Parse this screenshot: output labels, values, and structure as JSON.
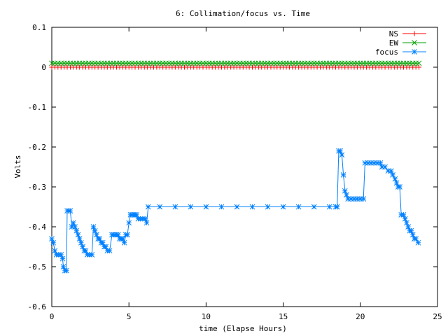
{
  "chart_data": {
    "type": "line",
    "title": "6: Collimation/focus vs. Time",
    "xlabel": "time (Elapse Hours)",
    "ylabel": "Volts",
    "xlim": [
      0,
      25
    ],
    "ylim": [
      -0.6,
      0.1
    ],
    "xticks": [
      0,
      5,
      10,
      15,
      20,
      25
    ],
    "yticks": [
      -0.6,
      -0.5,
      -0.4,
      -0.3,
      -0.2,
      -0.1,
      0,
      0.1
    ],
    "xtick_labels": [
      "0",
      "5",
      "10",
      "15",
      "20",
      "25"
    ],
    "ytick_labels": [
      "-0.6",
      "-0.5",
      "-0.4",
      "-0.3",
      "-0.2",
      "-0.1",
      "0",
      "0.1"
    ],
    "grid": false,
    "legend_position": "top-right",
    "series": [
      {
        "name": "NS",
        "color": "#ff0000",
        "marker": "plus",
        "x_start": 0.0,
        "x_end": 23.9,
        "x_step": 0.2,
        "constant_y": 0.0
      },
      {
        "name": "EW",
        "color": "#00a000",
        "marker": "cross",
        "x_start": 0.0,
        "x_end": 23.9,
        "x_step": 0.2,
        "constant_y": 0.01
      },
      {
        "name": "focus",
        "color": "#0080ff",
        "marker": "star",
        "points": [
          [
            0.0,
            -0.43
          ],
          [
            0.1,
            -0.44
          ],
          [
            0.2,
            -0.46
          ],
          [
            0.3,
            -0.47
          ],
          [
            0.45,
            -0.47
          ],
          [
            0.6,
            -0.47
          ],
          [
            0.7,
            -0.48
          ],
          [
            0.75,
            -0.5
          ],
          [
            0.85,
            -0.51
          ],
          [
            0.95,
            -0.51
          ],
          [
            1.0,
            -0.36
          ],
          [
            1.1,
            -0.36
          ],
          [
            1.2,
            -0.36
          ],
          [
            1.3,
            -0.4
          ],
          [
            1.4,
            -0.39
          ],
          [
            1.5,
            -0.4
          ],
          [
            1.6,
            -0.41
          ],
          [
            1.7,
            -0.42
          ],
          [
            1.8,
            -0.43
          ],
          [
            1.9,
            -0.44
          ],
          [
            2.0,
            -0.45
          ],
          [
            2.1,
            -0.46
          ],
          [
            2.2,
            -0.46
          ],
          [
            2.3,
            -0.47
          ],
          [
            2.45,
            -0.47
          ],
          [
            2.6,
            -0.47
          ],
          [
            2.7,
            -0.4
          ],
          [
            2.8,
            -0.41
          ],
          [
            2.9,
            -0.42
          ],
          [
            3.0,
            -0.43
          ],
          [
            3.1,
            -0.43
          ],
          [
            3.2,
            -0.44
          ],
          [
            3.3,
            -0.44
          ],
          [
            3.4,
            -0.45
          ],
          [
            3.5,
            -0.45
          ],
          [
            3.6,
            -0.46
          ],
          [
            3.75,
            -0.46
          ],
          [
            3.9,
            -0.42
          ],
          [
            4.0,
            -0.42
          ],
          [
            4.1,
            -0.42
          ],
          [
            4.2,
            -0.42
          ],
          [
            4.3,
            -0.42
          ],
          [
            4.4,
            -0.43
          ],
          [
            4.5,
            -0.43
          ],
          [
            4.6,
            -0.43
          ],
          [
            4.7,
            -0.44
          ],
          [
            4.8,
            -0.42
          ],
          [
            4.9,
            -0.42
          ],
          [
            5.0,
            -0.39
          ],
          [
            5.1,
            -0.37
          ],
          [
            5.2,
            -0.37
          ],
          [
            5.3,
            -0.37
          ],
          [
            5.4,
            -0.37
          ],
          [
            5.5,
            -0.37
          ],
          [
            5.6,
            -0.38
          ],
          [
            5.75,
            -0.38
          ],
          [
            5.9,
            -0.38
          ],
          [
            6.05,
            -0.38
          ],
          [
            6.15,
            -0.39
          ],
          [
            6.25,
            -0.35
          ],
          [
            7.0,
            -0.35
          ],
          [
            8.0,
            -0.35
          ],
          [
            9.0,
            -0.35
          ],
          [
            10.0,
            -0.35
          ],
          [
            11.0,
            -0.35
          ],
          [
            12.0,
            -0.35
          ],
          [
            13.0,
            -0.35
          ],
          [
            14.0,
            -0.35
          ],
          [
            15.0,
            -0.35
          ],
          [
            16.0,
            -0.35
          ],
          [
            17.0,
            -0.35
          ],
          [
            18.0,
            -0.35
          ],
          [
            18.4,
            -0.35
          ],
          [
            18.5,
            -0.35
          ],
          [
            18.6,
            -0.21
          ],
          [
            18.7,
            -0.21
          ],
          [
            18.8,
            -0.22
          ],
          [
            18.9,
            -0.27
          ],
          [
            19.0,
            -0.31
          ],
          [
            19.1,
            -0.32
          ],
          [
            19.2,
            -0.33
          ],
          [
            19.4,
            -0.33
          ],
          [
            19.6,
            -0.33
          ],
          [
            19.8,
            -0.33
          ],
          [
            20.0,
            -0.33
          ],
          [
            20.2,
            -0.33
          ],
          [
            20.3,
            -0.24
          ],
          [
            20.5,
            -0.24
          ],
          [
            20.7,
            -0.24
          ],
          [
            20.9,
            -0.24
          ],
          [
            21.1,
            -0.24
          ],
          [
            21.3,
            -0.24
          ],
          [
            21.4,
            -0.25
          ],
          [
            21.6,
            -0.25
          ],
          [
            21.8,
            -0.26
          ],
          [
            22.0,
            -0.26
          ],
          [
            22.1,
            -0.27
          ],
          [
            22.25,
            -0.28
          ],
          [
            22.35,
            -0.29
          ],
          [
            22.45,
            -0.3
          ],
          [
            22.55,
            -0.3
          ],
          [
            22.65,
            -0.37
          ],
          [
            22.8,
            -0.37
          ],
          [
            22.9,
            -0.38
          ],
          [
            23.0,
            -0.39
          ],
          [
            23.1,
            -0.4
          ],
          [
            23.2,
            -0.41
          ],
          [
            23.3,
            -0.41
          ],
          [
            23.4,
            -0.42
          ],
          [
            23.5,
            -0.43
          ],
          [
            23.6,
            -0.43
          ],
          [
            23.75,
            -0.44
          ]
        ]
      }
    ]
  }
}
